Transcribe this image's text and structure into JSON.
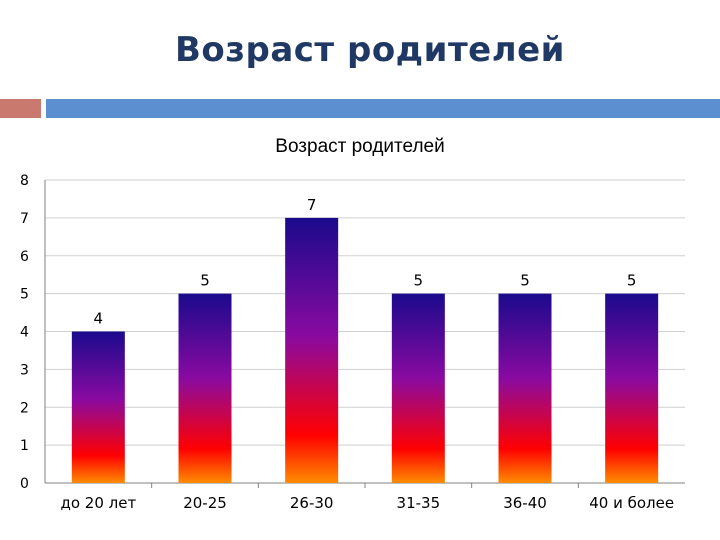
{
  "slide": {
    "title": "Возраст родителей"
  },
  "colors": {
    "title": "#1f3864",
    "deco_red": "#c9796e",
    "deco_blue": "#5b8fd0",
    "bar_top": "#1a0a8c",
    "bar_mid": "#8a0aa0",
    "bar_low": "#ff0000",
    "bar_bottom": "#ff8c00",
    "gridline": "#d0d0d0"
  },
  "chart_data": {
    "type": "bar",
    "title": "Возраст родителей",
    "xlabel": "",
    "ylabel": "",
    "categories": [
      "до 20 лет",
      "20-25",
      "26-30",
      "31-35",
      "36-40",
      "40 и более"
    ],
    "values": [
      4,
      5,
      7,
      5,
      5,
      5
    ],
    "data_labels": [
      "4",
      "5",
      "7",
      "5",
      "5",
      "5"
    ],
    "ylim": [
      0,
      8
    ],
    "yticks": [
      "0",
      "1",
      "2",
      "3",
      "4",
      "5",
      "6",
      "7",
      "8"
    ],
    "grid": true,
    "legend": "none"
  }
}
